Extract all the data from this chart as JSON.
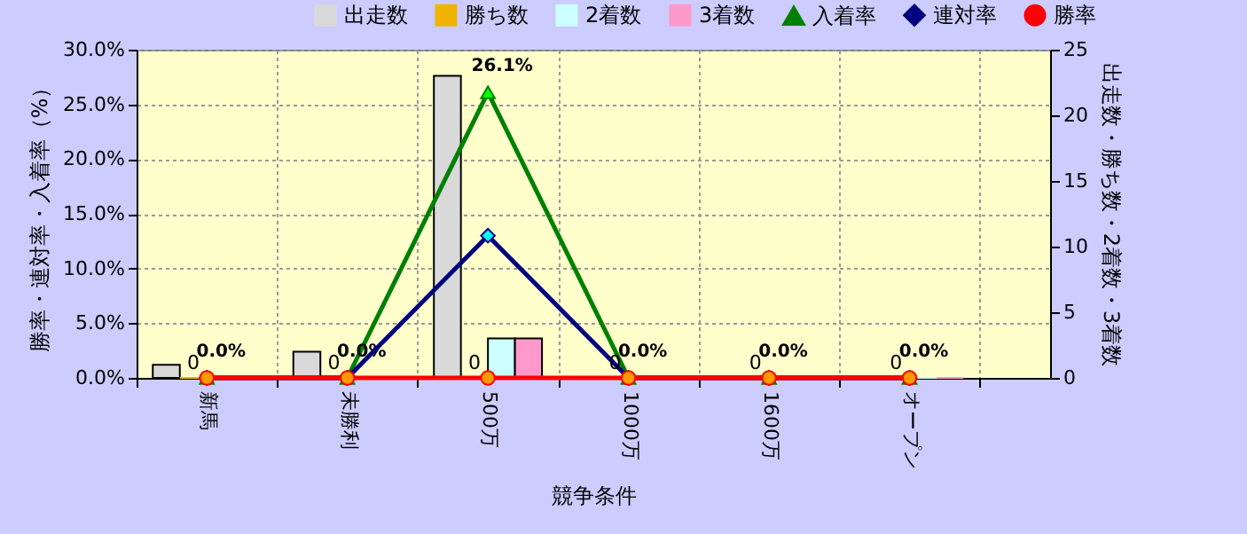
{
  "chart_data": {
    "type": "bar",
    "xlabel": "競争条件",
    "ylabel": "勝率・連対率・入着率（%）",
    "y2label": "出走数・勝ち数・2着数・3着数",
    "categories": [
      "新馬",
      "未勝利",
      "500万",
      "1000万",
      "1600万",
      "オープン"
    ],
    "series": [
      {
        "name": "出走数",
        "axis": "y2",
        "color": "#d9d9d9",
        "values": [
          1,
          2,
          23,
          0,
          0,
          0
        ]
      },
      {
        "name": "勝ち数",
        "axis": "y2",
        "color": "#f0b400",
        "values": [
          0,
          0,
          0,
          0,
          0,
          0
        ],
        "value_labels": [
          "0",
          "0",
          "0",
          "0",
          "0",
          "0"
        ]
      },
      {
        "name": "2着数",
        "axis": "y2",
        "color": "#ccffff",
        "values": [
          0,
          0,
          3,
          0,
          0,
          0
        ]
      },
      {
        "name": "3着数",
        "axis": "y2",
        "color": "#ff99cc",
        "values": [
          0,
          0,
          3,
          0,
          0,
          0
        ]
      },
      {
        "name": "入着率",
        "type": "line",
        "marker": "triangle",
        "color": "#008000",
        "values": [
          0,
          0,
          26.1,
          0,
          0,
          0
        ],
        "value_labels": [
          "0.0%",
          "0.0%",
          "26.1%",
          "0.0%",
          "0.0%",
          "0.0%"
        ]
      },
      {
        "name": "連対率",
        "type": "line",
        "marker": "diamond",
        "color": "#000080",
        "values": [
          0,
          0,
          13.0,
          0,
          0,
          0
        ]
      },
      {
        "name": "勝率",
        "type": "line",
        "marker": "circle",
        "color": "#ff0000",
        "values": [
          0,
          0,
          0,
          0,
          0,
          0
        ]
      }
    ],
    "ylim": [
      0,
      30
    ],
    "yticks": [
      {
        "value": 0,
        "label": "0.0%"
      },
      {
        "value": 5,
        "label": "5.0%"
      },
      {
        "value": 10,
        "label": "10.0%"
      },
      {
        "value": 15,
        "label": "15.0%"
      },
      {
        "value": 20,
        "label": "20.0%"
      },
      {
        "value": 25,
        "label": "25.0%"
      },
      {
        "value": 30,
        "label": "30.0%"
      }
    ],
    "y2lim": [
      0,
      25
    ],
    "y2ticks": [
      0,
      5,
      10,
      15,
      20,
      25
    ],
    "grid": true,
    "legend": "top"
  }
}
